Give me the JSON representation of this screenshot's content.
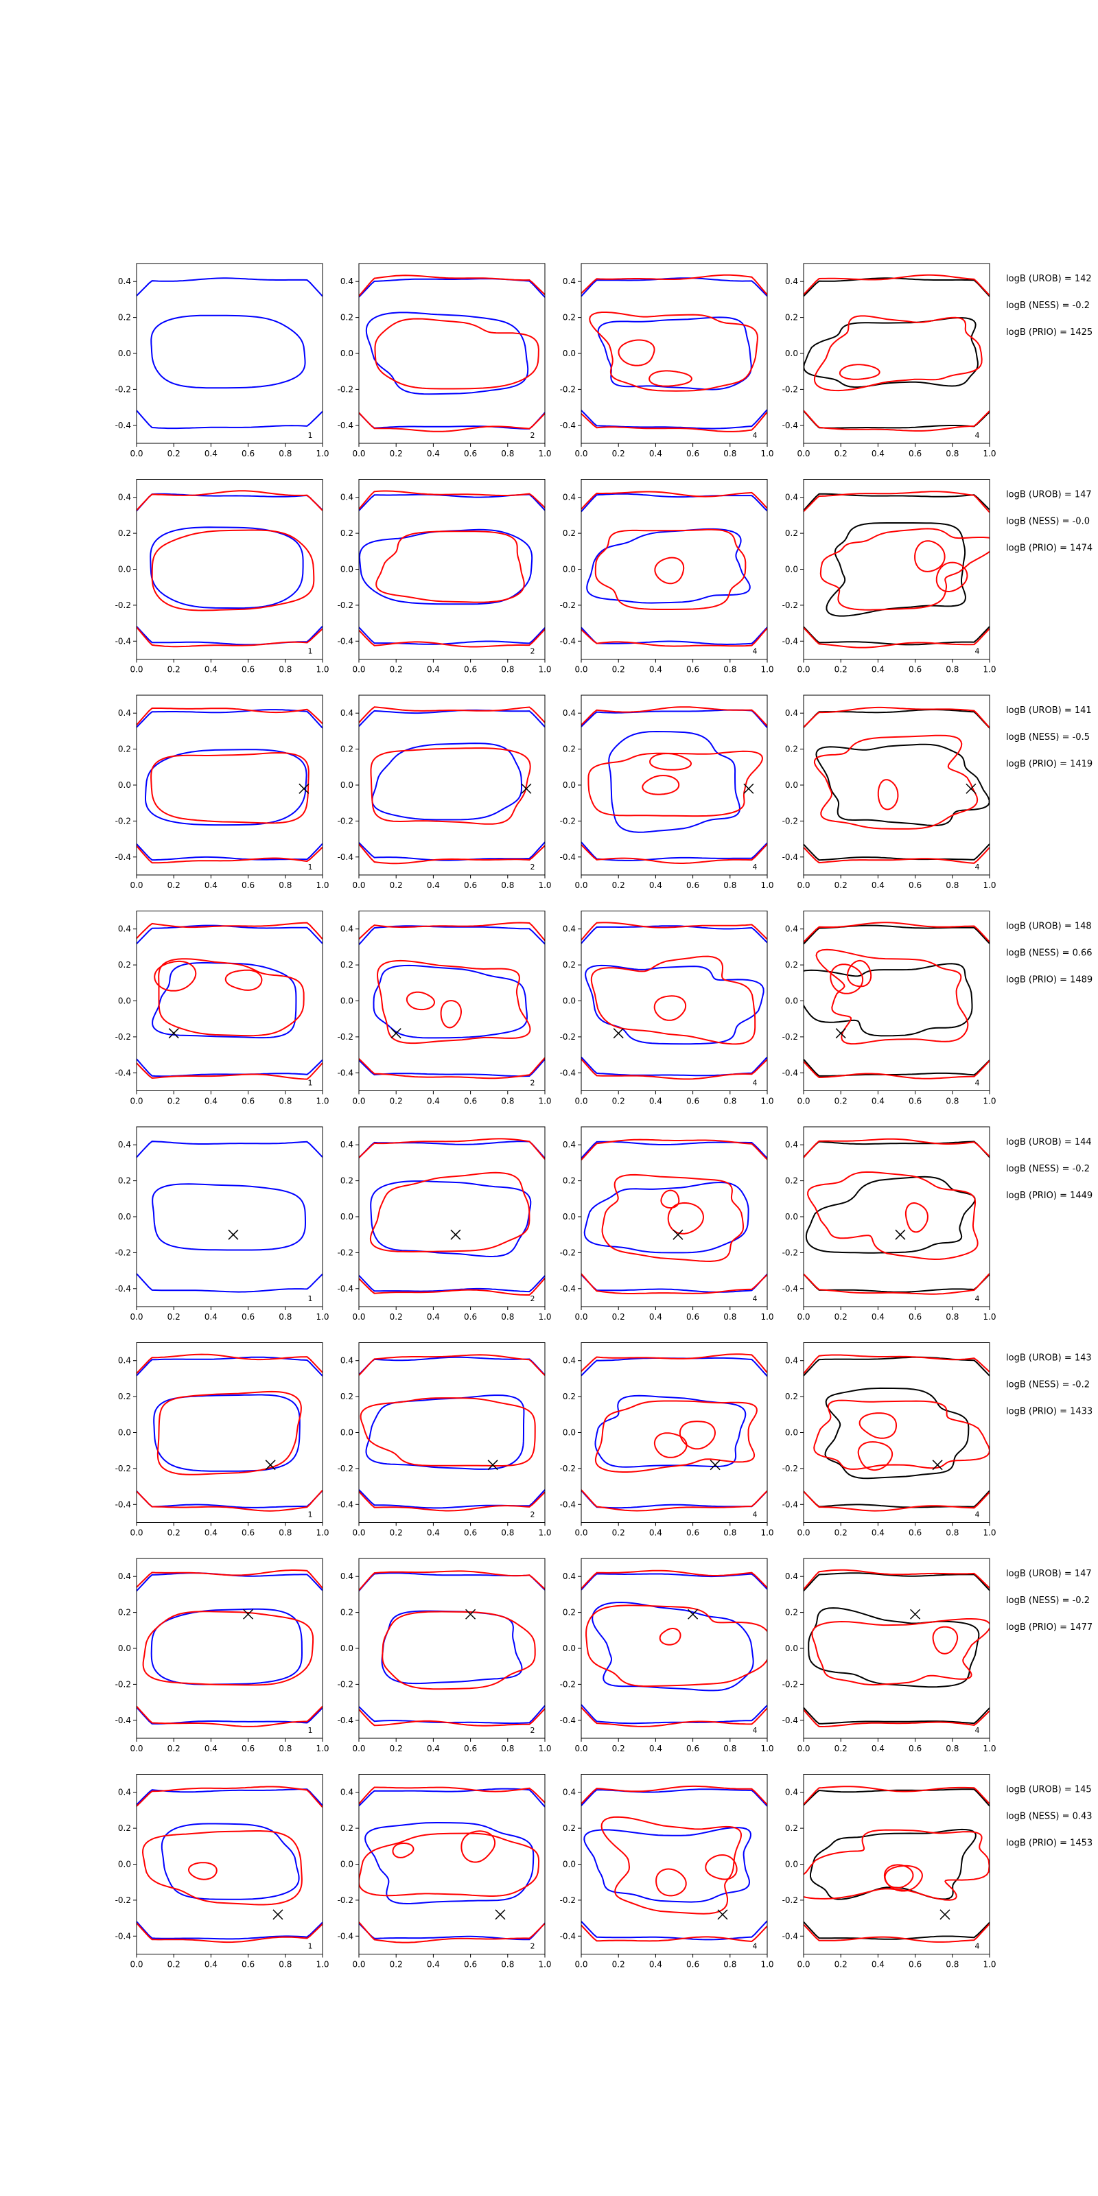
{
  "colors": {
    "a": "#0000ff",
    "b": "#ff0000",
    "c": "#000000",
    "marker": "#000000"
  },
  "chart_data": {
    "type": "line",
    "description_type": "contour-grid",
    "xlim": [
      0.0,
      1.0
    ],
    "ylim": [
      -0.5,
      0.5
    ],
    "xticks": [
      "0.0",
      "0.2",
      "0.4",
      "0.6",
      "0.8",
      "1.0"
    ],
    "yticks": [
      "0.4",
      "0.2",
      "0.0",
      "-0.2",
      "-0.4"
    ],
    "rows": [
      {
        "marker": null,
        "panels": [
          {
            "label": "1",
            "colors": [
              "a"
            ]
          },
          {
            "label": "2",
            "colors": [
              "a",
              "b"
            ]
          },
          {
            "label": "4",
            "colors": [
              "a",
              "b"
            ]
          },
          {
            "label": "4",
            "colors": [
              "c",
              "b"
            ]
          }
        ],
        "logB": [
          "logB (UROB) = 142",
          "logB (NESS) = -0.2",
          "logB (PRIO) = 1425"
        ]
      },
      {
        "marker": null,
        "panels": [
          {
            "label": "1",
            "colors": [
              "a",
              "b"
            ]
          },
          {
            "label": "2",
            "colors": [
              "a",
              "b"
            ]
          },
          {
            "label": "4",
            "colors": [
              "a",
              "b"
            ]
          },
          {
            "label": "4",
            "colors": [
              "c",
              "b"
            ]
          }
        ],
        "logB": [
          "logB (UROB) = 147",
          "logB (NESS) = -0.0",
          "logB (PRIO) = 1474"
        ]
      },
      {
        "marker": [
          0.9,
          -0.02
        ],
        "panels": [
          {
            "label": "1",
            "colors": [
              "a",
              "b"
            ]
          },
          {
            "label": "2",
            "colors": [
              "a",
              "b"
            ]
          },
          {
            "label": "4",
            "colors": [
              "a",
              "b"
            ]
          },
          {
            "label": "4",
            "colors": [
              "c",
              "b"
            ]
          }
        ],
        "logB": [
          "logB (UROB) = 141",
          "logB (NESS) = -0.5",
          "logB (PRIO) = 1419"
        ]
      },
      {
        "marker": [
          0.2,
          -0.18
        ],
        "panels": [
          {
            "label": "1",
            "colors": [
              "a",
              "b"
            ]
          },
          {
            "label": "2",
            "colors": [
              "a",
              "b"
            ]
          },
          {
            "label": "4",
            "colors": [
              "a",
              "b"
            ]
          },
          {
            "label": "4",
            "colors": [
              "c",
              "b"
            ]
          }
        ],
        "logB": [
          "logB (UROB) = 148",
          "logB (NESS) = 0.66",
          "logB (PRIO) = 1489"
        ]
      },
      {
        "marker": [
          0.52,
          -0.1
        ],
        "panels": [
          {
            "label": "1",
            "colors": [
              "a"
            ]
          },
          {
            "label": "2",
            "colors": [
              "a",
              "b"
            ]
          },
          {
            "label": "4",
            "colors": [
              "a",
              "b"
            ]
          },
          {
            "label": "4",
            "colors": [
              "c",
              "b"
            ]
          }
        ],
        "logB": [
          "logB (UROB) = 144",
          "logB (NESS) = -0.2",
          "logB (PRIO) = 1449"
        ]
      },
      {
        "marker": [
          0.72,
          -0.18
        ],
        "panels": [
          {
            "label": "1",
            "colors": [
              "a",
              "b"
            ]
          },
          {
            "label": "2",
            "colors": [
              "a",
              "b"
            ]
          },
          {
            "label": "4",
            "colors": [
              "a",
              "b"
            ]
          },
          {
            "label": "4",
            "colors": [
              "c",
              "b"
            ]
          }
        ],
        "logB": [
          "logB (UROB) = 143",
          "logB (NESS) = -0.2",
          "logB (PRIO) = 1433"
        ]
      },
      {
        "marker": [
          0.6,
          0.19
        ],
        "panels": [
          {
            "label": "1",
            "colors": [
              "a",
              "b"
            ]
          },
          {
            "label": "2",
            "colors": [
              "a",
              "b"
            ]
          },
          {
            "label": "4",
            "colors": [
              "a",
              "b"
            ]
          },
          {
            "label": "4",
            "colors": [
              "c",
              "b"
            ]
          }
        ],
        "logB": [
          "logB (UROB) = 147",
          "logB (NESS) = -0.2",
          "logB (PRIO) = 1477"
        ]
      },
      {
        "marker": [
          0.76,
          -0.28
        ],
        "panels": [
          {
            "label": "1",
            "colors": [
              "a",
              "b"
            ]
          },
          {
            "label": "2",
            "colors": [
              "a",
              "b"
            ]
          },
          {
            "label": "4",
            "colors": [
              "a",
              "b"
            ]
          },
          {
            "label": "4",
            "colors": [
              "c",
              "b"
            ]
          }
        ],
        "logB": [
          "logB (UROB) = 145",
          "logB (NESS) = 0.43",
          "logB (PRIO) = 1453"
        ]
      }
    ]
  }
}
